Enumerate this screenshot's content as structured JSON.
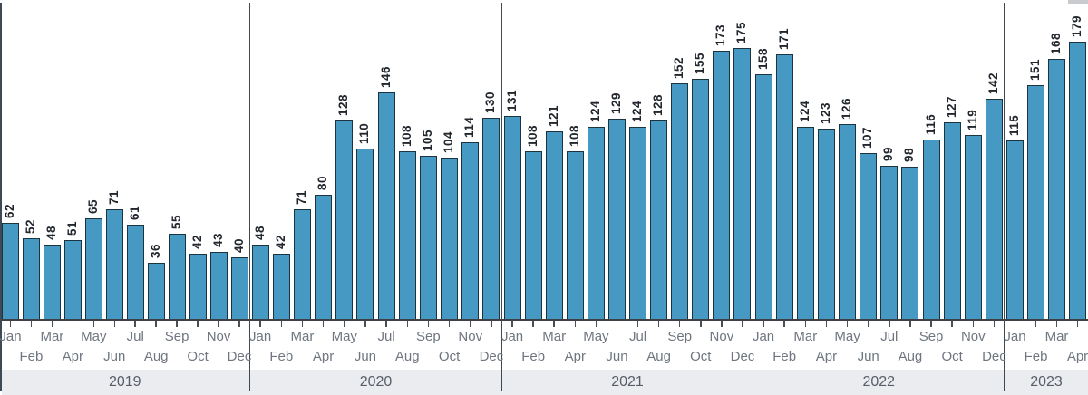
{
  "chart_data": {
    "type": "bar",
    "title": "",
    "xlabel": "",
    "ylabel": "",
    "ylim": [
      0,
      185
    ],
    "grid": false,
    "legend": "none",
    "value_labels": "rotated-90-above-bars",
    "x_axis": "months grouped by year with alternating two-row labels",
    "groups": [
      {
        "label": "2019",
        "categories": [
          "Jan",
          "Feb",
          "Mar",
          "Apr",
          "May",
          "Jun",
          "Jul",
          "Aug",
          "Sep",
          "Oct",
          "Nov",
          "Dec"
        ],
        "values": [
          62,
          52,
          48,
          51,
          65,
          71,
          61,
          36,
          55,
          42,
          43,
          40
        ]
      },
      {
        "label": "2020",
        "categories": [
          "Jan",
          "Feb",
          "Mar",
          "Apr",
          "May",
          "Jun",
          "Jul",
          "Aug",
          "Sep",
          "Oct",
          "Nov",
          "Dec"
        ],
        "values": [
          48,
          42,
          71,
          80,
          128,
          110,
          146,
          108,
          105,
          104,
          114,
          130
        ]
      },
      {
        "label": "2021",
        "categories": [
          "Jan",
          "Feb",
          "Mar",
          "Apr",
          "May",
          "Jun",
          "Jul",
          "Aug",
          "Sep",
          "Oct",
          "Nov",
          "Dec"
        ],
        "values": [
          131,
          108,
          121,
          108,
          124,
          129,
          124,
          128,
          152,
          155,
          173,
          175
        ]
      },
      {
        "label": "2022",
        "categories": [
          "Jan",
          "Feb",
          "Mar",
          "Apr",
          "May",
          "Jun",
          "Jul",
          "Aug",
          "Sep",
          "Oct",
          "Nov",
          "Dec"
        ],
        "values": [
          158,
          171,
          124,
          123,
          126,
          107,
          99,
          98,
          116,
          127,
          119,
          142
        ]
      },
      {
        "label": "2023",
        "categories": [
          "Jan",
          "Feb",
          "Mar",
          "Apr"
        ],
        "values": [
          115,
          151,
          168,
          179
        ]
      }
    ]
  },
  "style": {
    "bar_fill": "#4599c3",
    "bar_border": "#1c3440",
    "value_label_color": "#22272e",
    "month_label_color": "#6f7680",
    "year_label_color": "#575e68",
    "year_band_bg": "#ebecef",
    "axis_line_color": "#3d4145",
    "separator_color": "#3e4953",
    "tick_color": "#4a4f54",
    "top_right_fragment_color": "#c8cad0"
  }
}
